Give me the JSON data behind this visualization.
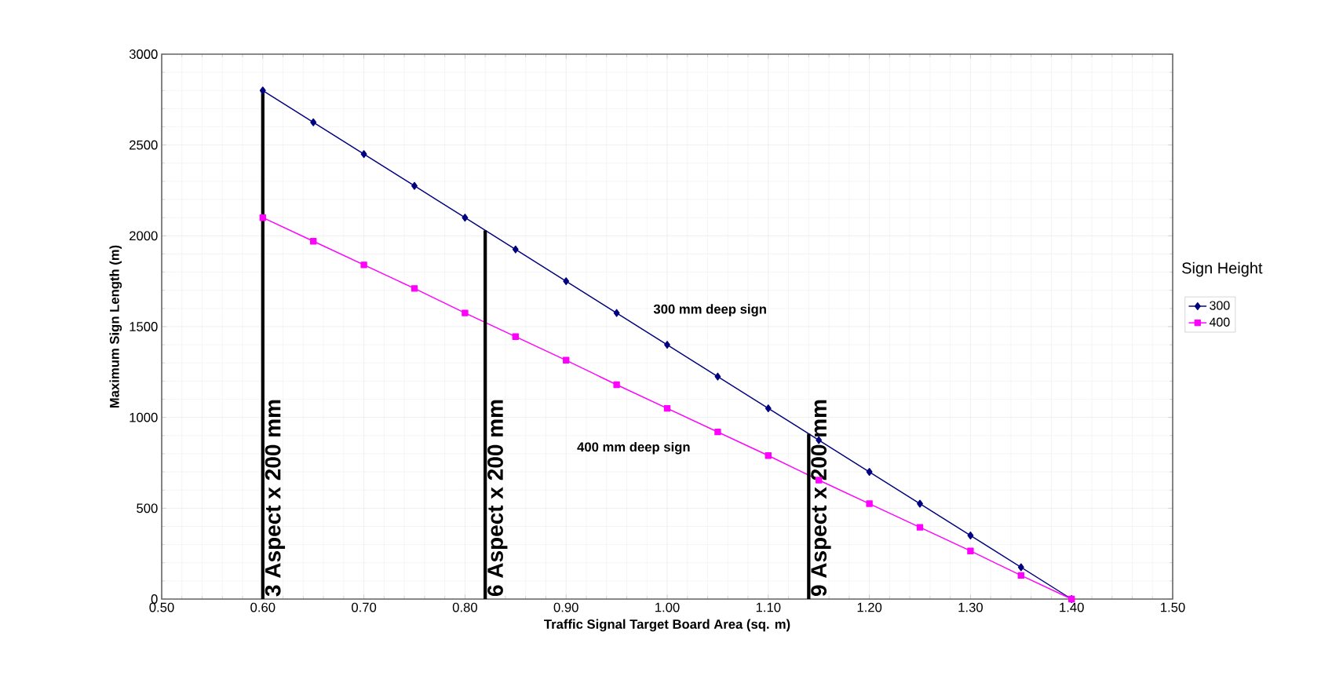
{
  "chart_data": {
    "type": "line",
    "xlabel": "Traffic Signal Target Board Area (sq. m)",
    "ylabel": "Maximum Sign Length (m)",
    "legend_title": "Sign Height",
    "xlim": [
      0.5,
      1.5
    ],
    "xticks": [
      {
        "value": 0.5,
        "label": "0.50"
      },
      {
        "value": 0.6,
        "label": "0.60"
      },
      {
        "value": 0.7,
        "label": "0.70"
      },
      {
        "value": 0.8,
        "label": "0.80"
      },
      {
        "value": 0.9,
        "label": "0.90"
      },
      {
        "value": 1.0,
        "label": "1.00"
      },
      {
        "value": 1.1,
        "label": "1.10"
      },
      {
        "value": 1.2,
        "label": "1.20"
      },
      {
        "value": 1.3,
        "label": "1.30"
      },
      {
        "value": 1.4,
        "label": "1.40"
      },
      {
        "value": 1.5,
        "label": "1.50"
      }
    ],
    "ylim": [
      0,
      3000
    ],
    "yticks": [
      0,
      500,
      1000,
      1500,
      2000,
      2500,
      3000
    ],
    "grid": true,
    "legend": "right",
    "x": [
      0.6,
      0.65,
      0.7,
      0.75,
      0.8,
      0.85,
      0.9,
      0.95,
      1.0,
      1.05,
      1.1,
      1.15,
      1.2,
      1.25,
      1.3,
      1.35,
      1.4
    ],
    "series": [
      {
        "name": "300",
        "color": "#000080",
        "marker": "diamond",
        "values": [
          2800,
          2625,
          2450,
          2275,
          2100,
          1925,
          1750,
          1575,
          1400,
          1225,
          1050,
          875,
          700,
          525,
          350,
          175,
          0
        ]
      },
      {
        "name": "400",
        "color": "#ff00ff",
        "marker": "square",
        "values": [
          2100,
          1970,
          1840,
          1710,
          1575,
          1445,
          1315,
          1180,
          1050,
          920,
          790,
          655,
          525,
          395,
          265,
          130,
          0
        ]
      },
      {
        "name": "3 Aspect x 200 mm",
        "color": "#000000",
        "marker": "none",
        "x": [
          0.6,
          0.6
        ],
        "values": [
          0,
          2800
        ]
      },
      {
        "name": "6 Aspect x 200 mm",
        "color": "#000000",
        "marker": "none",
        "x": [
          0.82,
          0.82
        ],
        "values": [
          0,
          2030
        ]
      },
      {
        "name": "9 Aspect x 200 mm",
        "color": "#000000",
        "marker": "none",
        "x": [
          1.14,
          1.14
        ],
        "values": [
          0,
          910
        ]
      }
    ],
    "annotations": [
      "300 mm deep sign",
      "400 mm deep sign"
    ]
  }
}
